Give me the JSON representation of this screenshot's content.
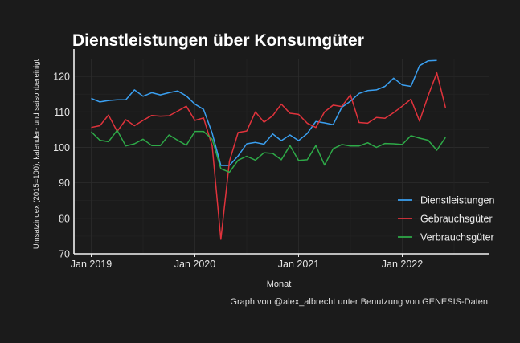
{
  "chart_data": {
    "type": "line",
    "title": "Dienstleistungen über Konsumgüter",
    "xlabel": "Monat",
    "ylabel": "Umsatzindex (2015=100), kalender- und saisonbereinigt",
    "caption": "Graph von @alex_albrecht unter Benutzung von GENESIS-Daten",
    "x_start": "2019-01",
    "x_ticks": [
      "Jan 2019",
      "Jan 2020",
      "Jan 2021",
      "Jan 2022"
    ],
    "y_ticks": [
      70,
      80,
      90,
      100,
      110,
      120
    ],
    "ylim": [
      70,
      125
    ],
    "xlim": [
      "2018-11",
      "2022-11"
    ],
    "grid": true,
    "legend_position": "right",
    "series": [
      {
        "name": "Dienstleistungen",
        "color": "#3a9ff0",
        "values": [
          113.8,
          112.8,
          113.2,
          113.4,
          113.4,
          116.2,
          114.4,
          115.4,
          114.8,
          115.4,
          115.9,
          114.5,
          112.2,
          110.7,
          104.0,
          94.9,
          94.9,
          97.6,
          101.0,
          101.4,
          100.9,
          103.8,
          101.9,
          103.5,
          101.9,
          103.9,
          107.3,
          106.9,
          106.4,
          111.3,
          113.0,
          115.2,
          116.0,
          116.2,
          117.2,
          119.5,
          117.6,
          117.2,
          123.0,
          124.4,
          124.5
        ]
      },
      {
        "name": "Gebrauchsgüter",
        "color": "#e0333c",
        "values": [
          105.6,
          106.1,
          109.1,
          104.5,
          107.8,
          106.1,
          107.6,
          109.0,
          108.8,
          108.9,
          110.2,
          111.6,
          107.6,
          108.3,
          100.4,
          74.1,
          96.1,
          104.2,
          104.6,
          110.0,
          107.1,
          108.9,
          112.2,
          109.6,
          109.3,
          106.8,
          105.6,
          110.0,
          111.9,
          111.5,
          114.8,
          107.0,
          106.8,
          108.4,
          108.2,
          109.8,
          111.6,
          113.6,
          107.4,
          114.6,
          121.0,
          111.2
        ]
      },
      {
        "name": "Verbrauchsgüter",
        "color": "#2eaa48",
        "values": [
          104.4,
          102.0,
          101.6,
          104.8,
          100.4,
          101.0,
          102.3,
          100.5,
          100.5,
          103.5,
          102.0,
          100.6,
          104.5,
          104.5,
          102.3,
          94.0,
          93.0,
          96.4,
          97.5,
          96.4,
          98.5,
          98.3,
          96.5,
          100.5,
          96.3,
          96.5,
          100.5,
          95.0,
          99.6,
          100.8,
          100.4,
          100.4,
          101.3,
          100.0,
          101.1,
          101.0,
          100.8,
          103.3,
          102.6,
          102.0,
          99.2,
          102.8
        ]
      }
    ]
  }
}
